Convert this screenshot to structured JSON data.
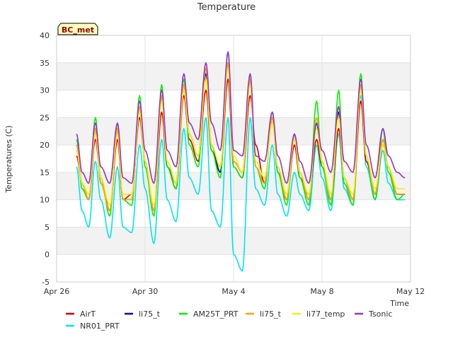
{
  "chart_data": {
    "type": "line",
    "title": "Temperature",
    "xlabel": "Time",
    "ylabel": "Temperatures (C)",
    "badge": "BC_met",
    "xlim": [
      0,
      16
    ],
    "ylim": [
      -5,
      40
    ],
    "x_ticks": [
      {
        "value": 0,
        "label": "Apr 26"
      },
      {
        "value": 4,
        "label": "Apr 30"
      },
      {
        "value": 8,
        "label": "May 4"
      },
      {
        "value": 12,
        "label": "May 8"
      },
      {
        "value": 16,
        "label": "May 12"
      }
    ],
    "y_ticks": [
      -5,
      0,
      5,
      10,
      15,
      20,
      25,
      30,
      35,
      40
    ],
    "x_start_label": "Apr 26",
    "x": [
      0.9,
      1.15,
      1.45,
      1.75,
      2.0,
      2.4,
      2.75,
      3.0,
      3.4,
      3.75,
      4.0,
      4.4,
      4.75,
      5.0,
      5.4,
      5.75,
      6.0,
      6.4,
      6.75,
      7.0,
      7.4,
      7.75,
      8.0,
      8.4,
      8.75,
      9.0,
      9.4,
      9.75,
      10.0,
      10.4,
      10.75,
      11.0,
      11.4,
      11.75,
      12.0,
      12.4,
      12.75,
      13.0,
      13.4,
      13.75,
      14.0,
      14.4,
      14.75,
      15.0,
      15.4,
      15.75
    ],
    "series": [
      {
        "name": "AirT",
        "color": "#cc0000",
        "values": [
          18,
          13,
          10,
          21,
          14,
          8,
          21,
          10,
          11,
          25,
          17,
          8,
          26,
          16,
          12,
          29,
          21,
          17,
          30,
          19,
          15,
          32,
          16,
          14,
          29,
          20,
          13,
          25,
          15,
          10,
          20,
          14,
          11,
          21,
          16,
          10,
          23,
          14,
          10,
          28,
          17,
          11,
          20,
          16,
          11,
          11
        ]
      },
      {
        "name": "NR01_PRT",
        "color": "#00e5ee",
        "values": [
          16,
          8,
          5,
          17,
          10,
          3,
          16,
          5,
          4,
          20,
          12,
          2,
          21,
          10,
          6,
          23,
          14,
          11,
          25,
          8,
          5,
          25,
          0,
          -3,
          25,
          12,
          9,
          20,
          11,
          7,
          15,
          11,
          8,
          20,
          14,
          8,
          22,
          12,
          9,
          29,
          16,
          10,
          19,
          13,
          10,
          10
        ]
      },
      {
        "name": "li75_t",
        "color": "#0000bb",
        "values": [
          20,
          13,
          10,
          23,
          13,
          8,
          23,
          10,
          10,
          27,
          17,
          8,
          29,
          16,
          13,
          31,
          22,
          18,
          33,
          20,
          15,
          35,
          17,
          15,
          32,
          16,
          13,
          25,
          16,
          10,
          22,
          15,
          10,
          24,
          17,
          10,
          26,
          14,
          10,
          31,
          18,
          11,
          21,
          16,
          11,
          11
        ]
      },
      {
        "name": "AM25T_PRT",
        "color": "#00ee00",
        "values": [
          21,
          12,
          10,
          25,
          14,
          7,
          24,
          10,
          9,
          29,
          16,
          7,
          31,
          16,
          12,
          32,
          20,
          16,
          34,
          19,
          14,
          37,
          16,
          14,
          33,
          16,
          12,
          26,
          15,
          9,
          22,
          14,
          9,
          28,
          16,
          9,
          30,
          13,
          9,
          33,
          18,
          10,
          23,
          15,
          10,
          11
        ]
      },
      {
        "name": "li75_t",
        "color": "#ffa500",
        "values": [
          20,
          13,
          10,
          23,
          13,
          8,
          23,
          10,
          10,
          27,
          17,
          8,
          29,
          17,
          13,
          31,
          22,
          18,
          34,
          20,
          16,
          35,
          17,
          15,
          32,
          16,
          13,
          25,
          16,
          10,
          22,
          15,
          10,
          25,
          17,
          10,
          27,
          14,
          10,
          31,
          18,
          11,
          21,
          16,
          11,
          11
        ]
      },
      {
        "name": "li77_temp",
        "color": "#ffee00",
        "values": [
          19,
          13,
          11,
          22,
          14,
          9,
          22,
          11,
          11,
          26,
          17,
          9,
          28,
          17,
          13,
          30,
          22,
          18,
          32,
          20,
          16,
          34,
          18,
          15,
          31,
          17,
          14,
          24,
          16,
          11,
          21,
          15,
          11,
          23,
          17,
          11,
          25,
          14,
          11,
          30,
          18,
          12,
          20,
          16,
          12,
          12
        ]
      },
      {
        "name": "Tsonic",
        "color": "#9932cc",
        "values": [
          22,
          15,
          13,
          24,
          16,
          13,
          24,
          14,
          13,
          28,
          19,
          13,
          30,
          19,
          16,
          33,
          24,
          21,
          35,
          24,
          19,
          37,
          19,
          18,
          33,
          18,
          17,
          26,
          18,
          13,
          22,
          17,
          13,
          24,
          19,
          15,
          27,
          17,
          15,
          32,
          20,
          14,
          23,
          18,
          15,
          14
        ]
      }
    ],
    "grid": true,
    "legend_position": "bottom"
  }
}
